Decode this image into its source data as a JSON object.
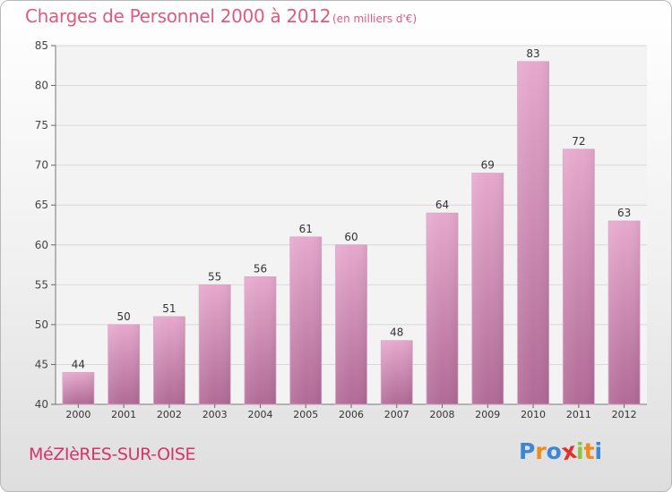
{
  "header": {
    "title": "Charges de Personnel 2000 à 2012",
    "subtitle": "(en milliers d'€)"
  },
  "footer": {
    "town": "MéZIèRES-SUR-OISE",
    "logo": "Proxiti"
  },
  "colors": {
    "title": "#e05a7c",
    "bar_top": "#e6a9cd",
    "bar_bottom": "#b06a96",
    "logo_letters": [
      "#3c86d6",
      "#f08a1c",
      "#3c86d6",
      "#e2302a",
      "#8bc53f",
      "#f08a1c",
      "#3c86d6"
    ]
  },
  "chart_data": {
    "type": "bar",
    "categories": [
      "2000",
      "2001",
      "2002",
      "2003",
      "2004",
      "2005",
      "2006",
      "2007",
      "2008",
      "2009",
      "2010",
      "2011",
      "2012"
    ],
    "values": [
      44,
      50,
      51,
      55,
      56,
      61,
      60,
      48,
      64,
      69,
      83,
      72,
      63
    ],
    "data_labels": [
      "44",
      "50",
      "51",
      "55",
      "56",
      "61",
      "60",
      "48",
      "64",
      "69",
      "83",
      "72",
      "63"
    ],
    "title": "Charges de Personnel 2000 à 2012",
    "subtitle": "(en milliers d'€)",
    "ylim": [
      40,
      85
    ],
    "yticks": [
      "40",
      "45",
      "50",
      "55",
      "60",
      "65",
      "70",
      "75",
      "80",
      "85"
    ],
    "grid": true,
    "legend": "none"
  }
}
